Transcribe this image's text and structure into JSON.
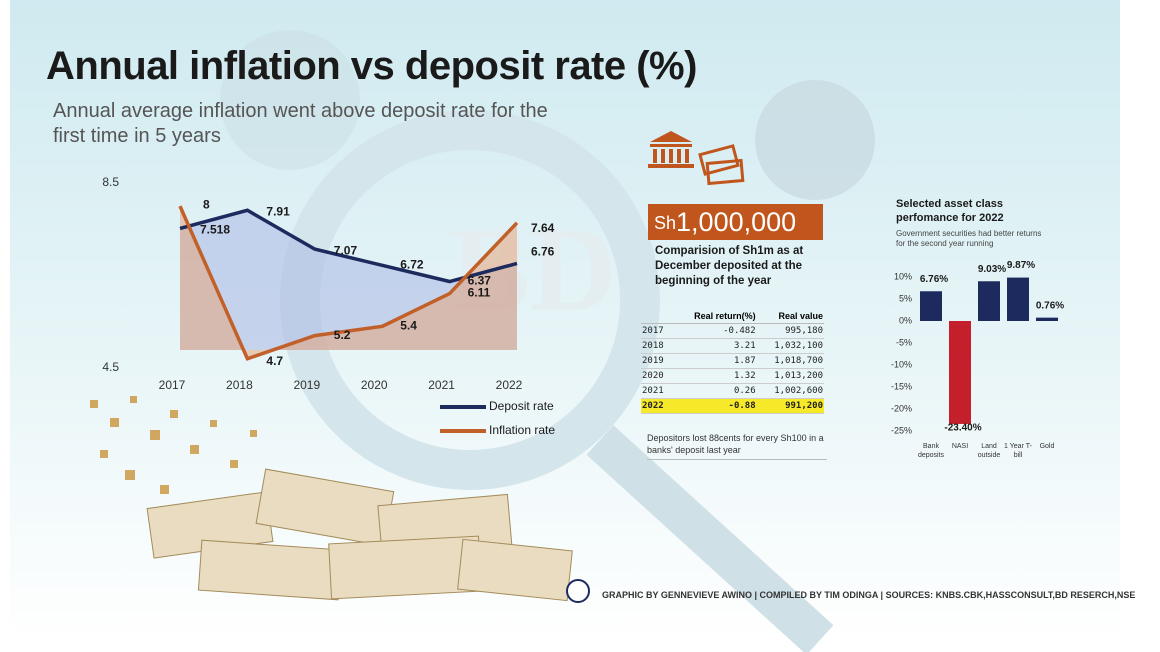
{
  "title": "Annual inflation vs deposit rate (%)",
  "subtitle": "Annual average inflation went above deposit rate for the first time in 5 years",
  "chart_data": [
    {
      "type": "line",
      "categories": [
        "2017",
        "2018",
        "2019",
        "2020",
        "2021",
        "2022"
      ],
      "series": [
        {
          "name": "Deposit rate",
          "color": "#1c2a5e",
          "values": [
            7.518,
            7.91,
            7.07,
            6.72,
            6.37,
            6.76
          ]
        },
        {
          "name": "Inflation rate",
          "color": "#c2602a",
          "values": [
            8,
            4.7,
            5.2,
            5.4,
            6.11,
            7.64
          ]
        }
      ],
      "ylim": [
        4.5,
        8.5
      ],
      "yticks": [
        4.5,
        8.5
      ]
    },
    {
      "type": "bar",
      "title": "Selected asset class perfomance for 2022",
      "subtitle": "Government securities had better returns for the second year running",
      "categories": [
        "Bank deposits",
        "NASI",
        "Land outside",
        "1 Year T-bill",
        "Gold"
      ],
      "values": [
        6.76,
        -23.4,
        9.03,
        9.87,
        0.76
      ],
      "value_labels": [
        "6.76%",
        "-23.40%",
        "9.03%",
        "9.87%",
        "0.76%"
      ],
      "colors": [
        "#1c2a5e",
        "#c4202c",
        "#1c2a5e",
        "#1c2a5e",
        "#1c2a5e"
      ],
      "ylim": [
        -25,
        10
      ],
      "yticks": [
        {
          "value": 10,
          "label": "10%"
        },
        {
          "value": 5,
          "label": "5%"
        },
        {
          "value": 0,
          "label": "0%"
        },
        {
          "value": -5,
          "label": "-5%"
        },
        {
          "value": -10,
          "label": "-10%"
        },
        {
          "value": -15,
          "label": "-15%"
        },
        {
          "value": -20,
          "label": "-20%"
        },
        {
          "value": -25,
          "label": "-25%"
        }
      ]
    }
  ],
  "comparison": {
    "currency": "Sh",
    "amount": "1,000,000",
    "caption": "Comparision of Sh1m as at December deposited at the beginning of the year",
    "table": {
      "header": [
        "Real return(%)",
        "Real value"
      ],
      "rows": [
        [
          "2017",
          "-0.482",
          "995,180"
        ],
        [
          "2018",
          "3.21",
          "1,032,100"
        ],
        [
          "2019",
          "1.87",
          "1,018,700"
        ],
        [
          "2020",
          "1.32",
          "1,013,200"
        ],
        [
          "2021",
          "0.26",
          "1,002,600"
        ],
        [
          "2022",
          "-0.88",
          "991,200"
        ]
      ]
    },
    "note": "Depositors lost 88cents for every Sh100 in a banks' deposit last year"
  },
  "credits": "GRAPHIC BY GENNEVIEVE AWINO | COMPILED BY TIM ODINGA | SOURCES: KNBS.CBK,HASSCONSULT,BD RESERCH,NSE"
}
